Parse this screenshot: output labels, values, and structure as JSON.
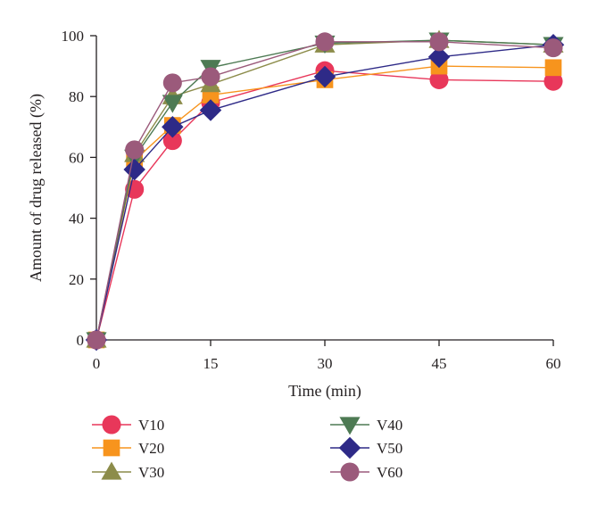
{
  "chart_data": {
    "type": "line",
    "xlabel": "Time (min)",
    "ylabel": "Amount of drug released (%)",
    "xlim": [
      0,
      60
    ],
    "ylim": [
      0,
      100
    ],
    "xticks": [
      0,
      15,
      30,
      45,
      60
    ],
    "yticks": [
      0,
      20,
      40,
      60,
      80,
      100
    ],
    "x": [
      0,
      5,
      10,
      15,
      30,
      45,
      60
    ],
    "grid": false,
    "legend": "bottom",
    "series": [
      {
        "name": "V10",
        "marker": "circle",
        "color": "#e8375a",
        "values": [
          0,
          49.5,
          65.5,
          78,
          88.5,
          85.5,
          85
        ]
      },
      {
        "name": "V20",
        "marker": "square",
        "color": "#f7941d",
        "values": [
          0,
          59,
          70.5,
          80.5,
          85.5,
          90,
          89.5
        ]
      },
      {
        "name": "V30",
        "marker": "triangle-up",
        "color": "#8c8c4a",
        "values": [
          0,
          61,
          80,
          84,
          97,
          98.5,
          97
        ]
      },
      {
        "name": "V40",
        "marker": "triangle-down",
        "color": "#4d7a53",
        "values": [
          0,
          60,
          78,
          89.5,
          97.5,
          98.5,
          97
        ]
      },
      {
        "name": "V50",
        "marker": "diamond",
        "color": "#2e2a87",
        "values": [
          0,
          56,
          70,
          75.5,
          86.5,
          93,
          97
        ]
      },
      {
        "name": "V60",
        "marker": "circle",
        "color": "#9b5a7b",
        "values": [
          0,
          62.5,
          84.5,
          86.5,
          98,
          98,
          96
        ]
      }
    ]
  }
}
